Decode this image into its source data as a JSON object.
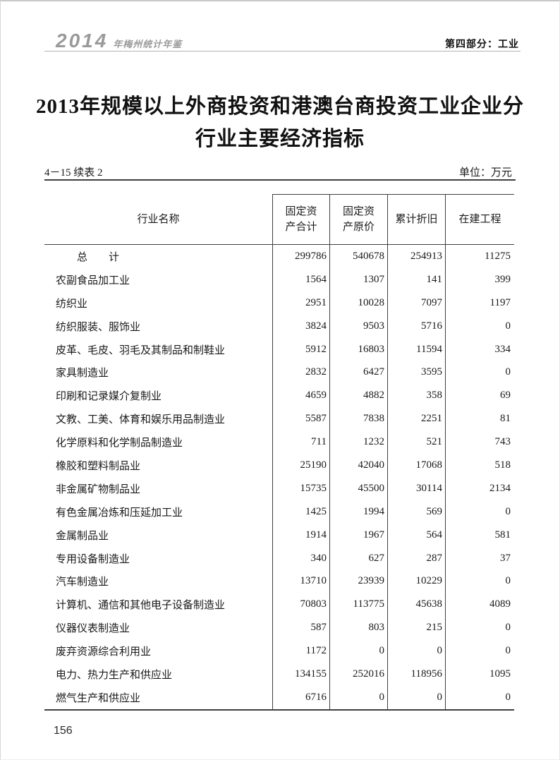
{
  "page_header": {
    "logo_year": "2014",
    "logo_title": "年梅州统计年鉴",
    "section_label": "第四部分：工业"
  },
  "document": {
    "title_line1": "2013年规模以上外商投资和港澳台商投资工业企业分",
    "title_line2": "行业主要经济指标",
    "table_number": "4－15 续表 2",
    "unit_label": "单位：万元",
    "page_number": "156"
  },
  "table": {
    "row_header_title": "行业名称",
    "col_headers": [
      {
        "lines": [
          "固定资",
          "产合计"
        ]
      },
      {
        "lines": [
          "固定资",
          "产原价"
        ]
      },
      {
        "lines": [
          "累计折旧"
        ]
      },
      {
        "lines": [
          "在建工程"
        ]
      }
    ],
    "rows": [
      {
        "name": "总　　计",
        "total": true,
        "values": [
          "299786",
          "540678",
          "254913",
          "11275"
        ]
      },
      {
        "name": "农副食品加工业",
        "values": [
          "1564",
          "1307",
          "141",
          "399"
        ]
      },
      {
        "name": "纺织业",
        "values": [
          "2951",
          "10028",
          "7097",
          "1197"
        ]
      },
      {
        "name": "纺织服装、服饰业",
        "values": [
          "3824",
          "9503",
          "5716",
          "0"
        ]
      },
      {
        "name": "皮革、毛皮、羽毛及其制品和制鞋业",
        "values": [
          "5912",
          "16803",
          "11594",
          "334"
        ]
      },
      {
        "name": "家具制造业",
        "values": [
          "2832",
          "6427",
          "3595",
          "0"
        ]
      },
      {
        "name": "印刷和记录媒介复制业",
        "values": [
          "4659",
          "4882",
          "358",
          "69"
        ]
      },
      {
        "name": "文教、工美、体育和娱乐用品制造业",
        "values": [
          "5587",
          "7838",
          "2251",
          "81"
        ]
      },
      {
        "name": "化学原料和化学制品制造业",
        "values": [
          "711",
          "1232",
          "521",
          "743"
        ]
      },
      {
        "name": "橡胶和塑料制品业",
        "values": [
          "25190",
          "42040",
          "17068",
          "518"
        ]
      },
      {
        "name": "非金属矿物制品业",
        "values": [
          "15735",
          "45500",
          "30114",
          "2134"
        ]
      },
      {
        "name": "有色金属冶炼和压延加工业",
        "values": [
          "1425",
          "1994",
          "569",
          "0"
        ]
      },
      {
        "name": "金属制品业",
        "values": [
          "1914",
          "1967",
          "564",
          "581"
        ]
      },
      {
        "name": "专用设备制造业",
        "values": [
          "340",
          "627",
          "287",
          "37"
        ]
      },
      {
        "name": "汽车制造业",
        "values": [
          "13710",
          "23939",
          "10229",
          "0"
        ]
      },
      {
        "name": "计算机、通信和其他电子设备制造业",
        "values": [
          "70803",
          "113775",
          "45638",
          "4089"
        ]
      },
      {
        "name": "仪器仪表制造业",
        "values": [
          "587",
          "803",
          "215",
          "0"
        ]
      },
      {
        "name": "废弃资源综合利用业",
        "values": [
          "1172",
          "0",
          "0",
          "0"
        ]
      },
      {
        "name": "电力、热力生产和供应业",
        "values": [
          "134155",
          "252016",
          "118956",
          "1095"
        ]
      },
      {
        "name": "燃气生产和供应业",
        "values": [
          "6716",
          "0",
          "0",
          "0"
        ]
      }
    ]
  },
  "colors": {
    "logo_gray": "#9a9a9a",
    "header_rule_gray": "#b3b3b3",
    "table_line": "#3f3f3f",
    "text": "#1a1a1a"
  }
}
